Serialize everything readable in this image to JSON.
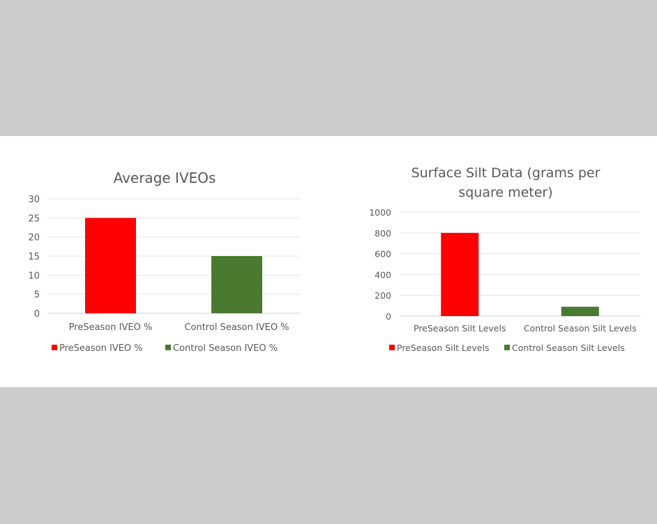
{
  "chart_data": [
    {
      "type": "bar",
      "title": "Average IVEOs",
      "categories": [
        "PreSeason IVEO %",
        "Control Season IVEO %"
      ],
      "values": [
        25,
        15
      ],
      "colors": [
        "#ff0000",
        "#4a7a30"
      ],
      "legend": [
        "PreSeason IVEO %",
        "Control Season IVEO %"
      ],
      "legend_position": "bottom",
      "ylim": [
        0,
        30
      ],
      "yticks": [
        0,
        5,
        10,
        15,
        20,
        25,
        30
      ],
      "grid": true,
      "xlabel": "",
      "ylabel": ""
    },
    {
      "type": "bar",
      "title": "Surface Silt Data (grams per square meter)",
      "title_lines": [
        "Surface Silt Data (grams per",
        "square meter)"
      ],
      "categories": [
        "PreSeason Silt Levels",
        "Control Season Silt Levels"
      ],
      "values": [
        800,
        90
      ],
      "colors": [
        "#ff0000",
        "#4a7a30"
      ],
      "legend": [
        "PreSeason Silt Levels",
        "Control Season Silt Levels"
      ],
      "legend_position": "bottom",
      "ylim": [
        0,
        1000
      ],
      "yticks": [
        0,
        200,
        400,
        600,
        800,
        1000
      ],
      "grid": true,
      "xlabel": "",
      "ylabel": ""
    }
  ]
}
